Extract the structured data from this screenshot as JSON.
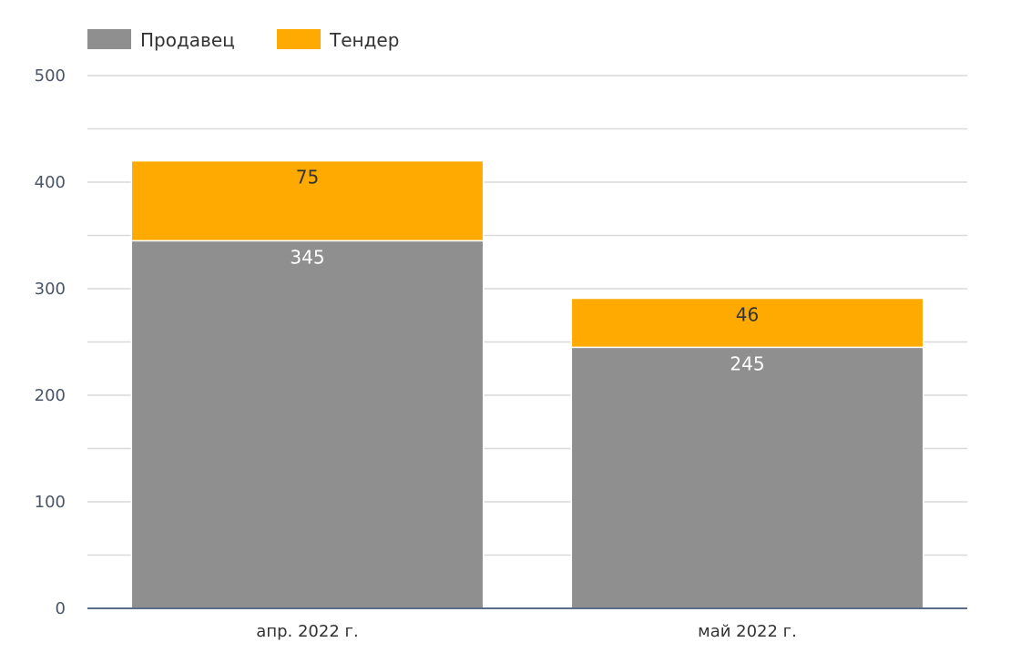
{
  "chart_data": {
    "type": "bar",
    "stacked": true,
    "categories": [
      "апр. 2022 г.",
      "май 2022 г."
    ],
    "series": [
      {
        "name": "Продавец",
        "values": [
          345,
          245
        ],
        "color": "#8f8f8f",
        "label_color": "#ffffff"
      },
      {
        "name": "Тендер",
        "values": [
          75,
          46
        ],
        "color": "#ffaa00",
        "label_color": "#333333"
      }
    ],
    "ylim": [
      0,
      500
    ],
    "y_ticks": [
      0,
      100,
      200,
      300,
      400,
      500
    ],
    "y_minor_step": 50,
    "grid": true,
    "legend_position": "top-left",
    "axis_color": "#5b6b8a",
    "grid_color": "#d9d9d9"
  }
}
